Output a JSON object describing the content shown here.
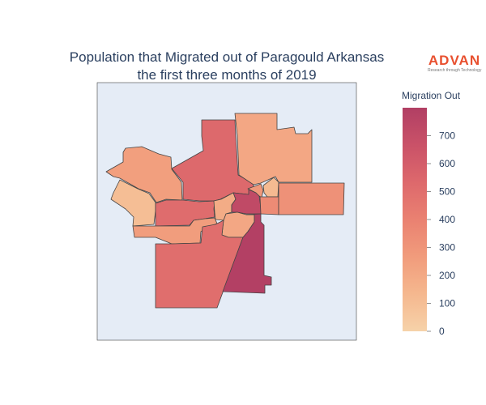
{
  "title_line1": "Population that Migrated out of Paragould Arkansas",
  "title_line2": "the first three months of 2019",
  "logo": {
    "word": "ADVAN",
    "tagline": "Research through Technology",
    "color": "#e8502f"
  },
  "legend": {
    "title": "Migration Out",
    "min": 0,
    "max": 800,
    "ticks": [
      0,
      100,
      200,
      300,
      400,
      500,
      600,
      700
    ],
    "colorscale": [
      "#f6d2a9",
      "#f5b78e",
      "#f19c7c",
      "#ea8171",
      "#dd686c",
      "#ca5268",
      "#b13f64"
    ]
  },
  "map": {
    "background": "#e5ecf6",
    "regions": [
      {
        "id": "region-north-central",
        "value": 530
      },
      {
        "id": "region-northeast",
        "value": 210
      },
      {
        "id": "region-northwest",
        "value": 250
      },
      {
        "id": "region-west",
        "value": 100
      },
      {
        "id": "region-west-central",
        "value": 510
      },
      {
        "id": "region-central-small-west",
        "value": 190
      },
      {
        "id": "region-central",
        "value": 720
      },
      {
        "id": "region-center-small-1",
        "value": 280
      },
      {
        "id": "region-center-small-2",
        "value": 120
      },
      {
        "id": "region-center-small-3",
        "value": 350
      },
      {
        "id": "region-east",
        "value": 320
      },
      {
        "id": "region-southwest-strip",
        "value": 260
      },
      {
        "id": "region-south-small",
        "value": 210
      },
      {
        "id": "region-south",
        "value": 500
      },
      {
        "id": "region-southeast",
        "value": 790
      }
    ]
  }
}
